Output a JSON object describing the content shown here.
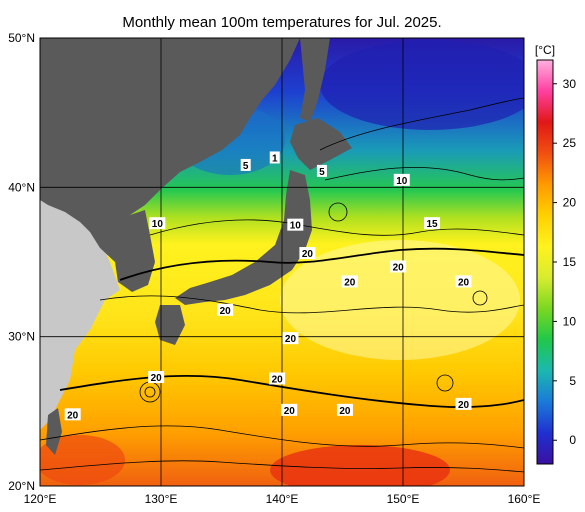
{
  "title": "Monthly mean 100m temperatures for Jul. 2025.",
  "colorbar": {
    "unit": "[°C]",
    "ticks": [
      "30",
      "25",
      "20",
      "15",
      "10",
      "5",
      "0"
    ],
    "range": [
      -2,
      32
    ],
    "stops": [
      "#3a10a0",
      "#2030d0",
      "#1a7ad8",
      "#1ab8b0",
      "#20c84a",
      "#7ad820",
      "#d8ec30",
      "#fff21e",
      "#ffd000",
      "#ff9a00",
      "#f05010",
      "#e01818",
      "#ff40a0",
      "#ffb0e0"
    ]
  },
  "axes": {
    "lon_labels": [
      "120°E",
      "130°E",
      "140°E",
      "150°E",
      "160°E"
    ],
    "lat_labels": [
      "50°N",
      "40°N",
      "30°N",
      "20°N"
    ],
    "lon_range": [
      120,
      160
    ],
    "lat_range": [
      20,
      50
    ]
  },
  "colors": {
    "land": "#5a5a5a",
    "land_outside": "#c8c8c8",
    "grid": "#000000"
  },
  "isotherm_labels": [
    {
      "text": "5",
      "lon": 137.0,
      "lat": 41.5
    },
    {
      "text": "1",
      "lon": 139.4,
      "lat": 42.0
    },
    {
      "text": "5",
      "lon": 143.3,
      "lat": 41.1
    },
    {
      "text": "10",
      "lon": 149.9,
      "lat": 40.5
    },
    {
      "text": "10",
      "lon": 129.7,
      "lat": 37.6
    },
    {
      "text": "10",
      "lon": 141.1,
      "lat": 37.5
    },
    {
      "text": "15",
      "lon": 152.4,
      "lat": 37.6
    },
    {
      "text": "20",
      "lon": 142.1,
      "lat": 35.6
    },
    {
      "text": "20",
      "lon": 149.6,
      "lat": 34.7
    },
    {
      "text": "20",
      "lon": 145.6,
      "lat": 33.7
    },
    {
      "text": "20",
      "lon": 155.0,
      "lat": 33.7
    },
    {
      "text": "20",
      "lon": 135.3,
      "lat": 31.8
    },
    {
      "text": "20",
      "lon": 140.7,
      "lat": 29.9
    },
    {
      "text": "20",
      "lon": 129.6,
      "lat": 27.3
    },
    {
      "text": "20",
      "lon": 139.6,
      "lat": 27.2
    },
    {
      "text": "20",
      "lon": 140.6,
      "lat": 25.1
    },
    {
      "text": "20",
      "lon": 145.2,
      "lat": 25.1
    },
    {
      "text": "20",
      "lon": 155.0,
      "lat": 25.5
    },
    {
      "text": "20",
      "lon": 122.7,
      "lat": 24.8
    }
  ]
}
